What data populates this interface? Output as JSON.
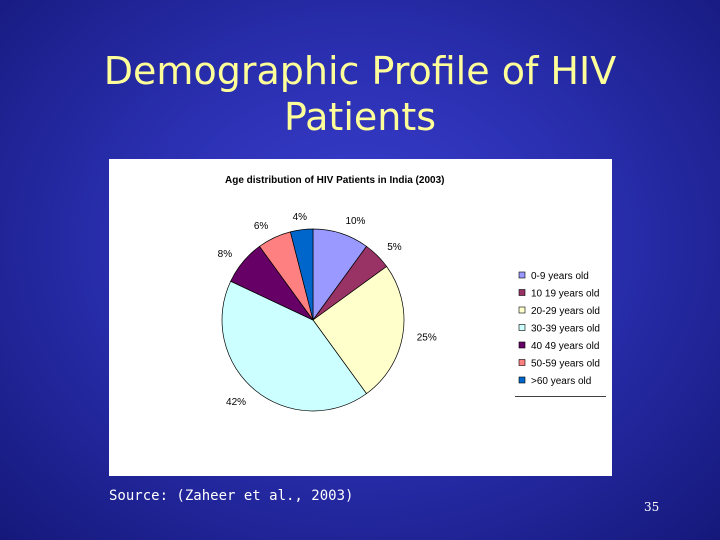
{
  "slide": {
    "title": "Demographic Profile of HIV Patients",
    "source": "Source: (Zaheer et al., 2003)",
    "page_number": "35",
    "title_color": "#ffff99"
  },
  "chart_data": {
    "type": "pie",
    "title": "Age distribution of HIV  Patients in India (2003)",
    "legend_position": "right",
    "slices": [
      {
        "label": "0-9 years old",
        "value": 10,
        "display": "10%",
        "color": "#9999ff"
      },
      {
        "label": "10 19 years old",
        "value": 5,
        "display": "5%",
        "color": "#993366"
      },
      {
        "label": "20-29 years old",
        "value": 25,
        "display": "25%",
        "color": "#ffffcc"
      },
      {
        "label": "30-39 years old",
        "value": 42,
        "display": "42%",
        "color": "#ccffff"
      },
      {
        "label": "40 49 years old",
        "value": 8,
        "display": "8%",
        "color": "#660066"
      },
      {
        "label": "50-59 years old",
        "value": 6,
        "display": "6%",
        "color": "#ff8080"
      },
      {
        "label": ">60 years old",
        "value": 4,
        "display": "4%",
        "color": "#0066cc"
      }
    ]
  }
}
